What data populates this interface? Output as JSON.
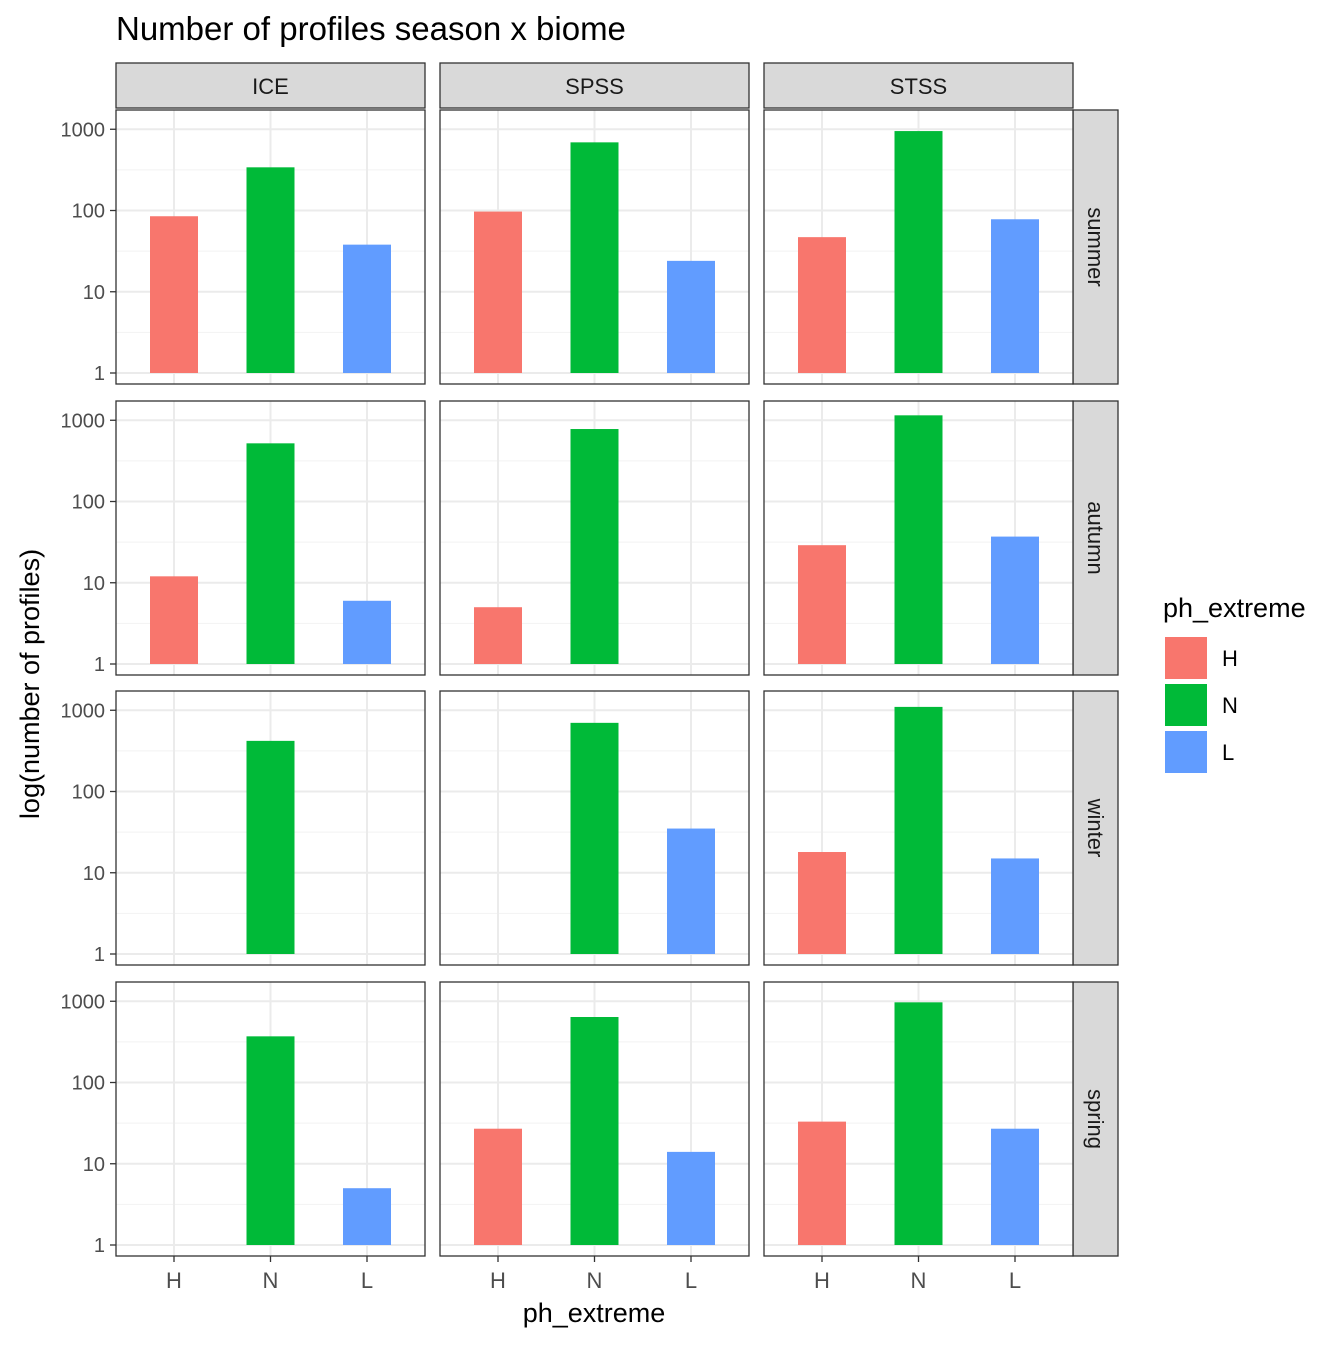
{
  "chart_data": {
    "type": "bar",
    "title": "Number of profiles season x biome",
    "xlabel": "ph_extreme",
    "ylabel": "log(number of profiles)",
    "y_scale": "log10",
    "ylim": [
      1,
      1300
    ],
    "y_ticks": [
      1,
      10,
      100,
      1000
    ],
    "y_tick_labels": [
      "1",
      "10",
      "100",
      "1000"
    ],
    "categories": [
      "H",
      "N",
      "L"
    ],
    "facet_columns": [
      "ICE",
      "SPSS",
      "STSS"
    ],
    "facet_rows": [
      "summer",
      "autumn",
      "winter",
      "spring"
    ],
    "grid": true,
    "legend": {
      "title": "ph_extreme",
      "position": "right",
      "entries": [
        {
          "label": "H",
          "color": "#F8766D"
        },
        {
          "label": "N",
          "color": "#00BA38"
        },
        {
          "label": "L",
          "color": "#619CFF"
        }
      ]
    },
    "panels": [
      {
        "column": "ICE",
        "row": "summer",
        "values": {
          "H": 85,
          "N": 340,
          "L": 38
        }
      },
      {
        "column": "SPSS",
        "row": "summer",
        "values": {
          "H": 97,
          "N": 690,
          "L": 24
        }
      },
      {
        "column": "STSS",
        "row": "summer",
        "values": {
          "H": 47,
          "N": 950,
          "L": 78
        }
      },
      {
        "column": "ICE",
        "row": "autumn",
        "values": {
          "H": 12,
          "N": 520,
          "L": 6
        }
      },
      {
        "column": "SPSS",
        "row": "autumn",
        "values": {
          "H": 5,
          "N": 780,
          "L": null
        }
      },
      {
        "column": "STSS",
        "row": "autumn",
        "values": {
          "H": 29,
          "N": 1150,
          "L": 37
        }
      },
      {
        "column": "ICE",
        "row": "winter",
        "values": {
          "H": null,
          "N": 420,
          "L": null
        }
      },
      {
        "column": "SPSS",
        "row": "winter",
        "values": {
          "H": null,
          "N": 700,
          "L": 35
        }
      },
      {
        "column": "STSS",
        "row": "winter",
        "values": {
          "H": 18,
          "N": 1100,
          "L": 15
        }
      },
      {
        "column": "ICE",
        "row": "spring",
        "values": {
          "H": null,
          "N": 370,
          "L": 5
        }
      },
      {
        "column": "SPSS",
        "row": "spring",
        "values": {
          "H": 27,
          "N": 640,
          "L": 14
        }
      },
      {
        "column": "STSS",
        "row": "spring",
        "values": {
          "H": 33,
          "N": 970,
          "L": 27
        }
      }
    ]
  }
}
